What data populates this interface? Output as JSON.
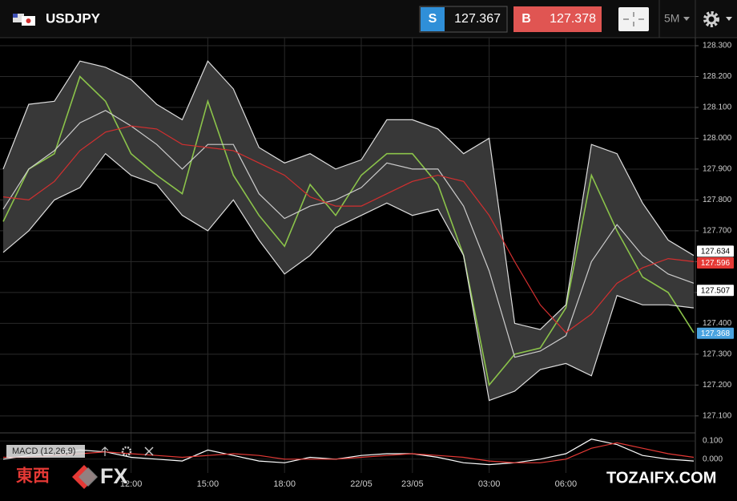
{
  "header": {
    "symbol": "USDJPY",
    "sell_label": "S",
    "sell_price": "127.367",
    "buy_label": "B",
    "buy_price": "127.378",
    "timeframe": "5M"
  },
  "watermark": {
    "left_cjk": "東西",
    "left_fx": "FX",
    "right": "TOZAIFX.COM"
  },
  "chart_data": {
    "type": "line",
    "categories": [
      null,
      null,
      null,
      null,
      null,
      "12:00",
      null,
      null,
      "15:00",
      null,
      null,
      "18:00",
      null,
      null,
      "22/05",
      null,
      "23/05",
      null,
      null,
      "03:00",
      null,
      null,
      "06:00",
      null,
      null,
      null,
      null,
      null
    ],
    "series": [
      {
        "color": "#8bc34a",
        "values": [
          127.73,
          127.9,
          127.95,
          128.2,
          128.12,
          127.95,
          127.88,
          127.82,
          128.12,
          127.88,
          127.75,
          127.65,
          127.85,
          127.75,
          127.88,
          127.95,
          127.95,
          127.85,
          127.62,
          127.2,
          127.3,
          127.32,
          127.45,
          127.88,
          127.7,
          127.55,
          127.5,
          127.37
        ]
      },
      {
        "color": "#dddddd",
        "values": [
          127.9,
          128.11,
          128.12,
          128.25,
          128.23,
          128.19,
          128.11,
          128.06,
          128.25,
          128.16,
          127.97,
          127.92,
          127.95,
          127.9,
          127.93,
          128.06,
          128.06,
          128.03,
          127.95,
          128.0,
          127.4,
          127.38,
          127.46,
          127.98,
          127.95,
          127.79,
          127.67,
          127.62
        ]
      },
      {
        "color": "#dddddd",
        "values": [
          127.63,
          127.7,
          127.8,
          127.84,
          127.95,
          127.88,
          127.85,
          127.75,
          127.7,
          127.8,
          127.67,
          127.56,
          127.62,
          127.71,
          127.75,
          127.79,
          127.75,
          127.77,
          127.62,
          127.15,
          127.18,
          127.25,
          127.27,
          127.23,
          127.49,
          127.46,
          127.46,
          127.45
        ]
      },
      {
        "color": "#cccccc",
        "values": [
          127.77,
          127.9,
          127.96,
          128.05,
          128.09,
          128.04,
          127.98,
          127.9,
          127.98,
          127.98,
          127.82,
          127.74,
          127.78,
          127.8,
          127.84,
          127.92,
          127.9,
          127.9,
          127.78,
          127.57,
          127.29,
          127.31,
          127.36,
          127.6,
          127.72,
          127.62,
          127.56,
          127.53
        ]
      },
      {
        "color": "#d32f2f",
        "values": [
          127.81,
          127.8,
          127.86,
          127.96,
          128.02,
          128.04,
          128.03,
          127.98,
          127.97,
          127.96,
          127.92,
          127.88,
          127.81,
          127.78,
          127.78,
          127.82,
          127.86,
          127.88,
          127.86,
          127.75,
          127.6,
          127.46,
          127.37,
          127.43,
          127.53,
          127.58,
          127.61,
          127.6
        ]
      }
    ],
    "band_fill": "#383838",
    "ylim": [
      127.045,
      128.326
    ],
    "yticks": [
      {
        "value": 127.1,
        "label": "127.100"
      },
      {
        "value": 127.2,
        "label": "127.200"
      },
      {
        "value": 127.3,
        "label": "127.300"
      },
      {
        "value": 127.4,
        "label": "127.400"
      },
      {
        "value": 127.5,
        "label": "127.500"
      },
      {
        "value": 127.6,
        "label": "127.600"
      },
      {
        "value": 127.7,
        "label": "127.700"
      },
      {
        "value": 127.8,
        "label": "127.800"
      },
      {
        "value": 127.9,
        "label": "127.900"
      },
      {
        "value": 128.0,
        "label": "128.000"
      },
      {
        "value": 128.1,
        "label": "128.100"
      },
      {
        "value": 128.2,
        "label": "128.200"
      },
      {
        "value": 128.3,
        "label": "128.300"
      }
    ],
    "grid": true,
    "price_tags": [
      {
        "value": 127.634,
        "color": "#ffffff",
        "text_color": "#000000"
      },
      {
        "value": 127.596,
        "color": "#e53935",
        "text_color": "#ffffff"
      },
      {
        "value": 127.507,
        "color": "#ffffff",
        "text_color": "#000000"
      },
      {
        "value": 127.368,
        "color": "#4aa3df",
        "text_color": "#ffffff"
      }
    ],
    "macd": {
      "title": "MACD (12,26,9)",
      "ylim": [
        -0.045,
        0.14
      ],
      "yticks": [
        {
          "value": 0.1,
          "label": "0.100"
        },
        {
          "value": 0,
          "label": "0.000"
        }
      ],
      "series": [
        {
          "color": "#ffffff",
          "values": [
            0.0,
            0.02,
            0.03,
            0.05,
            0.04,
            0.01,
            0.0,
            -0.01,
            0.05,
            0.02,
            -0.01,
            -0.02,
            0.01,
            0.0,
            0.02,
            0.03,
            0.03,
            0.01,
            -0.02,
            -0.03,
            -0.02,
            0.0,
            0.03,
            0.11,
            0.08,
            0.02,
            0.0,
            -0.01
          ]
        },
        {
          "color": "#e53935",
          "values": [
            0.01,
            0.01,
            0.02,
            0.03,
            0.04,
            0.03,
            0.02,
            0.01,
            0.02,
            0.03,
            0.02,
            0.0,
            0.0,
            0.0,
            0.01,
            0.02,
            0.03,
            0.02,
            0.01,
            -0.01,
            -0.02,
            -0.02,
            0.0,
            0.06,
            0.09,
            0.06,
            0.03,
            0.01
          ]
        }
      ]
    }
  }
}
